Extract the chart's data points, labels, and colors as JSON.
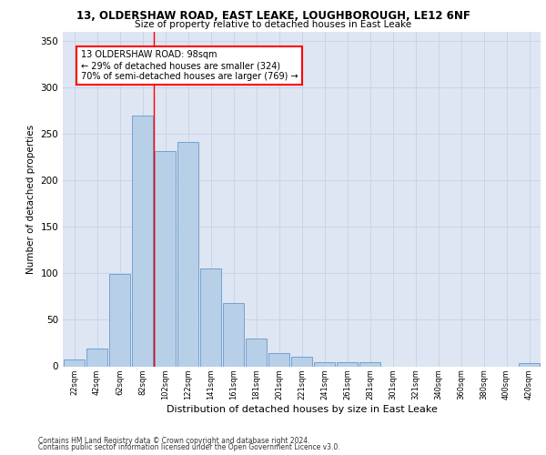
{
  "title_line1": "13, OLDERSHAW ROAD, EAST LEAKE, LOUGHBOROUGH, LE12 6NF",
  "title_line2": "Size of property relative to detached houses in East Leake",
  "xlabel": "Distribution of detached houses by size in East Leake",
  "ylabel": "Number of detached properties",
  "footer_line1": "Contains HM Land Registry data © Crown copyright and database right 2024.",
  "footer_line2": "Contains public sector information licensed under the Open Government Licence v3.0.",
  "bin_labels": [
    "22sqm",
    "42sqm",
    "62sqm",
    "82sqm",
    "102sqm",
    "122sqm",
    "141sqm",
    "161sqm",
    "181sqm",
    "201sqm",
    "221sqm",
    "241sqm",
    "261sqm",
    "281sqm",
    "301sqm",
    "321sqm",
    "340sqm",
    "360sqm",
    "380sqm",
    "400sqm",
    "420sqm"
  ],
  "bar_values": [
    7,
    19,
    99,
    270,
    232,
    241,
    105,
    68,
    30,
    14,
    10,
    4,
    4,
    4,
    0,
    0,
    0,
    0,
    0,
    0,
    3
  ],
  "bar_color": "#b8cfe8",
  "bar_edge_color": "#6699cc",
  "grid_color": "#c8d4e8",
  "background_color": "#dde6f2",
  "vline_color": "red",
  "annotation_text": "13 OLDERSHAW ROAD: 98sqm\n← 29% of detached houses are smaller (324)\n70% of semi-detached houses are larger (769) →",
  "annotation_box_color": "white",
  "annotation_box_edge": "red",
  "ylim": [
    0,
    360
  ],
  "yticks": [
    0,
    50,
    100,
    150,
    200,
    250,
    300,
    350
  ],
  "vline_position": 3.5
}
